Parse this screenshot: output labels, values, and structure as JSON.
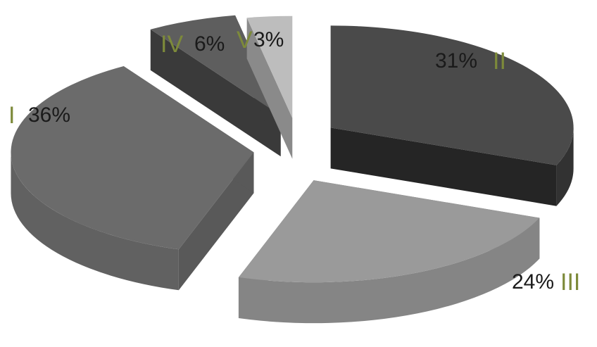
{
  "chart_data": {
    "type": "pie",
    "title": "",
    "legend": "none",
    "slices": [
      {
        "numeral": "I",
        "value": 36,
        "label": "36%",
        "top": "#6b6b6b",
        "side": "#595959",
        "ext": "#616161"
      },
      {
        "numeral": "II",
        "value": 31,
        "label": "31%",
        "top": "#4a4a4a",
        "side": "#252525",
        "ext": "#323232"
      },
      {
        "numeral": "III",
        "value": 24,
        "label": "24%",
        "top": "#9a9a9a",
        "side": "#777777",
        "ext": "#858585"
      },
      {
        "numeral": "IV",
        "value": 6,
        "label": "6%",
        "top": "#5e5e5e",
        "side": "#3a3a3a",
        "ext": "#444444"
      },
      {
        "numeral": "V",
        "value": 3,
        "label": "3%",
        "top": "#bdbdbd",
        "side": "#8a8a8a",
        "ext": "#a0a0a0"
      }
    ],
    "numeral_color": "#7d8a3a"
  }
}
